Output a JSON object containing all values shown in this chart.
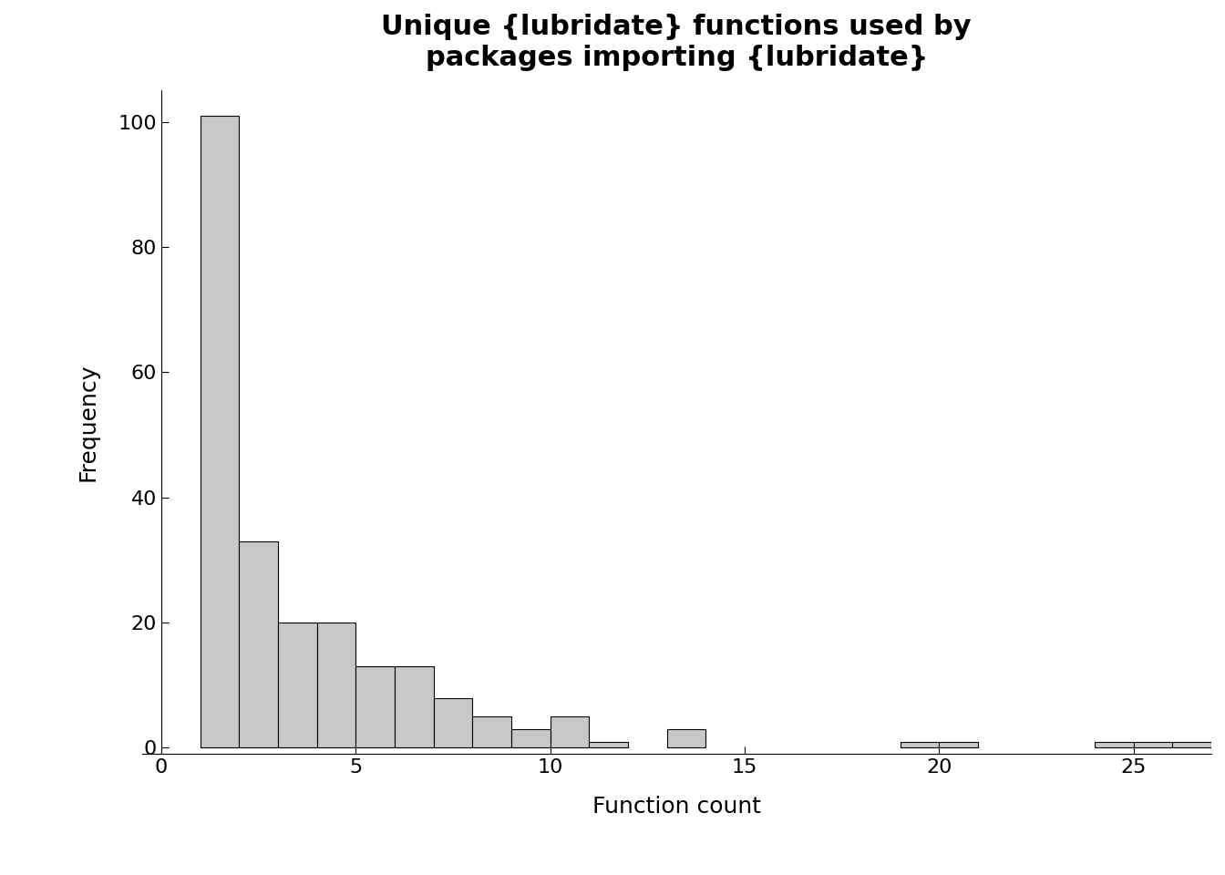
{
  "title": "Unique {lubridate} functions used by\npackages importing {lubridate}",
  "xlabel": "Function count",
  "ylabel": "Frequency",
  "bar_color": "#c8c8c8",
  "bar_edge_color": "#000000",
  "background_color": "#ffffff",
  "xlim": [
    -0.5,
    27
  ],
  "ylim": [
    -1,
    105
  ],
  "yticks": [
    0,
    20,
    40,
    60,
    80,
    100
  ],
  "xticks": [
    0,
    5,
    10,
    15,
    20,
    25
  ],
  "bin_left": [
    1,
    2,
    3,
    4,
    5,
    6,
    7,
    8,
    9,
    10,
    11,
    12,
    13,
    14,
    15,
    16,
    17,
    18,
    19,
    20,
    21,
    22,
    23,
    24,
    25,
    26
  ],
  "counts": [
    101,
    33,
    20,
    20,
    13,
    13,
    8,
    5,
    3,
    5,
    1,
    0,
    3,
    0,
    0,
    0,
    0,
    0,
    1,
    1,
    0,
    0,
    0,
    1,
    1,
    1
  ],
  "title_fontsize": 22,
  "axis_label_fontsize": 18,
  "tick_fontsize": 16
}
